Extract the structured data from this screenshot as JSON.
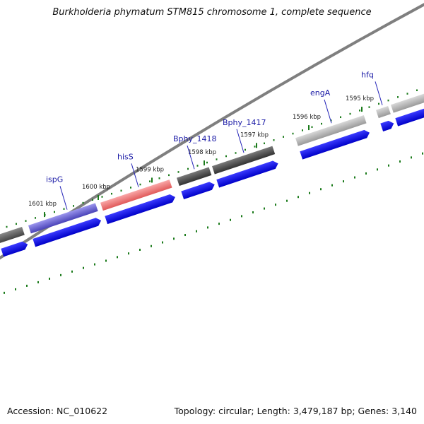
{
  "title": "Burkholderia phymatum STM815 chromosome 1, complete sequence",
  "footer": {
    "accession": "Accession: NC_010622",
    "summary": "Topology: circular; Length: 3,479,187 bp; Genes: 3,140"
  },
  "map": {
    "strand_color_forward": "#0000ee",
    "backbone_color": "#7f7f7f",
    "tick_color": "#1a7a1a",
    "genes": [
      {
        "name": "",
        "color": "#666666"
      },
      {
        "name": "ispG",
        "color": "#6a62d6"
      },
      {
        "name": "hisS",
        "color": "#ee7777"
      },
      {
        "name": "Bphy_1418",
        "color": "#5a5a5a"
      },
      {
        "name": "Bphy_1417",
        "color": "#4a4a4a"
      },
      {
        "name": "engA",
        "color": "#b4b4b4"
      },
      {
        "name": "hfq",
        "color": "#a8a8a8"
      },
      {
        "name": "",
        "color": "#9a9a9a"
      }
    ],
    "ticks": [
      "1601 kbp",
      "1600 kbp",
      "1599 kbp",
      "1598 kbp",
      "1597 kbp",
      "1596 kbp",
      "1595 kbp"
    ]
  }
}
